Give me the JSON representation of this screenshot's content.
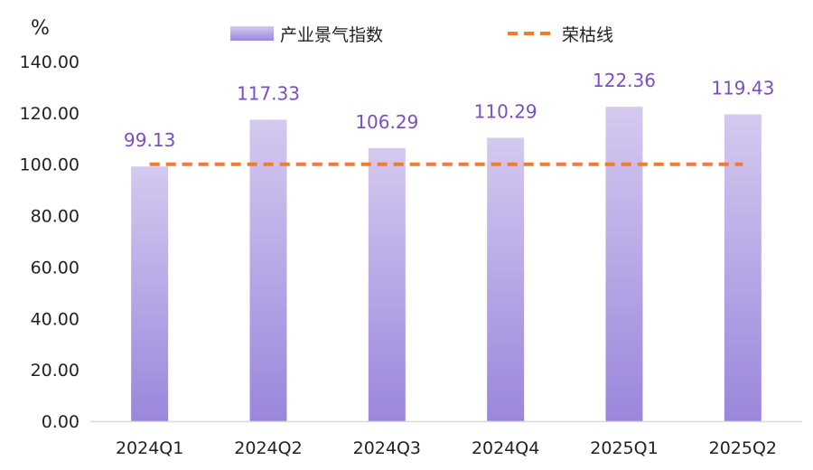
{
  "chart_data": {
    "type": "bar",
    "y_unit": "%",
    "categories": [
      "2024Q1",
      "2024Q2",
      "2024Q3",
      "2024Q4",
      "2025Q1",
      "2025Q2"
    ],
    "series": [
      {
        "name": "产业景气指数",
        "type": "bar",
        "values": [
          99.13,
          117.33,
          106.29,
          110.29,
          122.36,
          119.43
        ]
      },
      {
        "name": "荣枯线",
        "type": "line",
        "style": "dashed",
        "values": [
          100,
          100,
          100,
          100,
          100,
          100
        ]
      }
    ],
    "data_labels": [
      "99.13",
      "117.33",
      "106.29",
      "110.29",
      "122.36",
      "119.43"
    ],
    "ylim": [
      0,
      140
    ],
    "yticks": [
      "0.00",
      "20.00",
      "40.00",
      "60.00",
      "80.00",
      "100.00",
      "120.00",
      "140.00"
    ],
    "grid": false,
    "legend_position": "top",
    "colors": {
      "bar_top": "#d4c9ef",
      "bar_bottom": "#9b86dc",
      "line": "#ed7d31",
      "data_label": "#7a4fbf",
      "axis": "#d9d9d9"
    }
  }
}
